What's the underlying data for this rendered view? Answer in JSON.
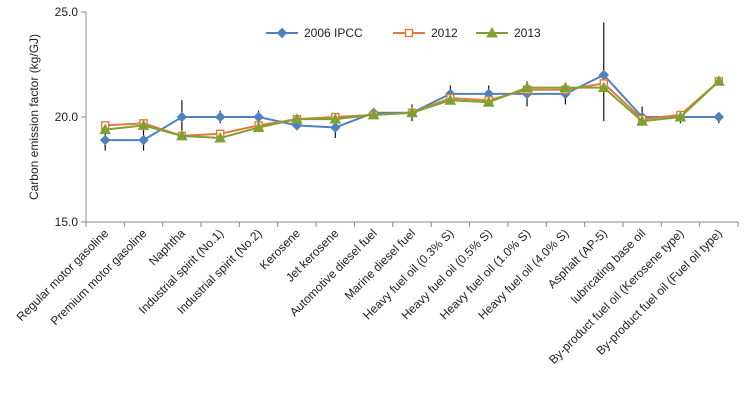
{
  "chart_data": {
    "type": "line",
    "title": "",
    "xlabel": "",
    "ylabel": "Carbon emission factor (kg/GJ)",
    "ylim": [
      15.0,
      25.0
    ],
    "yticks": [
      "15.0",
      "20.0",
      "25.0"
    ],
    "grid": false,
    "legend_position": "top-center",
    "categories": [
      "Regular motor gasoline",
      "Premium motor gasoline",
      "Naphtha",
      "Industrial spirit (No.1)",
      "Industrial spirit (No.2)",
      "Kerosene",
      "Jet kerosene",
      "Automotive diesel fuel",
      "Marine diesel fuel",
      "Heavy fuel oil (0.3% S)",
      "Heavy fuel oil (0.5% S)",
      "Heavy fuel oil (1.0% S)",
      "Heavy fuel oil (4.0% S)",
      "Asphalt (AP-5)",
      "lubricating base oil",
      "By-product fuel oil (Kerosene type)",
      "By-product fuel oil (Fuel oil type)"
    ],
    "series": [
      {
        "name": "2006 IPCC",
        "color": "#4F81BD",
        "marker": "diamond",
        "values": [
          18.9,
          18.9,
          20.0,
          20.0,
          20.0,
          19.6,
          19.5,
          20.2,
          20.2,
          21.1,
          21.1,
          21.1,
          21.1,
          22.0,
          20.0,
          20.0,
          20.0
        ],
        "error_low": [
          18.4,
          18.4,
          19.1,
          19.7,
          19.7,
          19.4,
          19.0,
          19.9,
          19.8,
          20.7,
          20.7,
          20.5,
          20.6,
          19.8,
          19.7,
          19.7,
          19.7
        ],
        "error_high": [
          19.4,
          19.4,
          20.8,
          20.3,
          20.3,
          19.8,
          20.1,
          20.4,
          20.6,
          21.5,
          21.5,
          21.7,
          21.6,
          24.5,
          20.5,
          20.2,
          20.2
        ]
      },
      {
        "name": "2012",
        "color": "#E07B39",
        "marker": "square-open",
        "values": [
          19.6,
          19.7,
          19.1,
          19.2,
          19.6,
          19.9,
          20.0,
          20.1,
          20.2,
          20.9,
          20.8,
          21.3,
          21.3,
          21.6,
          19.9,
          20.1,
          21.7
        ]
      },
      {
        "name": "2013",
        "color": "#7FA134",
        "marker": "triangle",
        "values": [
          19.4,
          19.6,
          19.1,
          19.0,
          19.5,
          19.9,
          19.9,
          20.1,
          20.2,
          20.8,
          20.7,
          21.4,
          21.4,
          21.4,
          19.8,
          20.0,
          21.7
        ]
      }
    ]
  }
}
